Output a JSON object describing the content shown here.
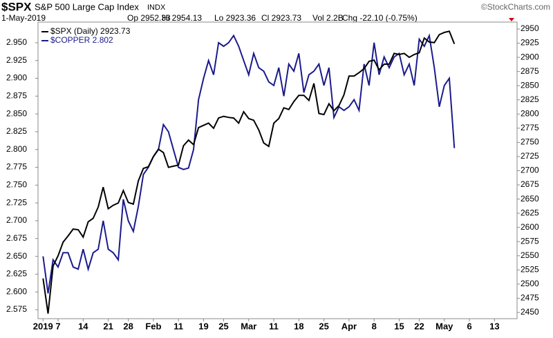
{
  "chart_data": {
    "type": "line",
    "symbol": "$SPX",
    "name": "S&P 500 Large Cap Index",
    "exchange": "INDX",
    "date": "1-May-2019",
    "quote": [
      "Op 2952.33",
      "Hi 2954.13",
      "Lo 2923.36",
      "Cl 2923.73",
      "Vol 2.2B",
      "Chg -22.10 (-0.75%)"
    ],
    "copyright": "©StockCharts.com",
    "xlim": [
      -1,
      94.5
    ],
    "xticks": [
      {
        "value": 0,
        "label": "2019"
      },
      {
        "value": 3,
        "label": "7"
      },
      {
        "value": 8,
        "label": "14"
      },
      {
        "value": 13,
        "label": "21"
      },
      {
        "value": 17,
        "label": "28"
      },
      {
        "value": 22,
        "label": "Feb"
      },
      {
        "value": 27,
        "label": "11"
      },
      {
        "value": 32,
        "label": "19"
      },
      {
        "value": 36,
        "label": "25"
      },
      {
        "value": 41,
        "label": "Mar"
      },
      {
        "value": 46,
        "label": "11"
      },
      {
        "value": 51,
        "label": "18"
      },
      {
        "value": 56,
        "label": "25"
      },
      {
        "value": 61,
        "label": "Apr"
      },
      {
        "value": 66,
        "label": "8"
      },
      {
        "value": 71,
        "label": "15"
      },
      {
        "value": 75,
        "label": "22"
      },
      {
        "value": 80,
        "label": "May"
      },
      {
        "value": 85,
        "label": "6"
      },
      {
        "value": 90,
        "label": "13"
      }
    ],
    "ylim": [
      2.5624,
      2.979
    ],
    "yticks": [
      {
        "value": 2.575,
        "label": "2.575"
      },
      {
        "value": 2.6,
        "label": "2.600"
      },
      {
        "value": 2.625,
        "label": "2.625"
      },
      {
        "value": 2.65,
        "label": "2.650"
      },
      {
        "value": 2.675,
        "label": "2.675"
      },
      {
        "value": 2.7,
        "label": "2.700"
      },
      {
        "value": 2.725,
        "label": "2.725"
      },
      {
        "value": 2.75,
        "label": "2.750"
      },
      {
        "value": 2.775,
        "label": "2.775"
      },
      {
        "value": 2.8,
        "label": "2.800"
      },
      {
        "value": 2.825,
        "label": "2.825"
      },
      {
        "value": 2.85,
        "label": "2.850"
      },
      {
        "value": 2.875,
        "label": "2.875"
      },
      {
        "value": 2.9,
        "label": "2.900"
      },
      {
        "value": 2.925,
        "label": "2.925"
      },
      {
        "value": 2.95,
        "label": "2.950"
      }
    ],
    "y2lim": [
      2439,
      2962.2
    ],
    "y2ticks": [
      2450,
      2475,
      2500,
      2525,
      2550,
      2575,
      2600,
      2625,
      2650,
      2675,
      2700,
      2725,
      2750,
      2775,
      2800,
      2825,
      2850,
      2875,
      2900,
      2925,
      2950
    ],
    "series": [
      {
        "name": "$SPX (Daily) 2923.73",
        "color": "#000000",
        "axis": "y2",
        "values": [
          2510,
          2448,
          2532,
          2550,
          2574,
          2585,
          2597,
          2596,
          2583,
          2610,
          2616,
          2636,
          2671,
          2633,
          2639,
          2643,
          2665,
          2644,
          2641,
          2682,
          2704,
          2707,
          2725,
          2738,
          2732,
          2706,
          2708,
          2710,
          2744,
          2754,
          2746,
          2776,
          2780,
          2784,
          2775,
          2793,
          2796,
          2794,
          2793,
          2784,
          2804,
          2792,
          2789,
          2772,
          2749,
          2743,
          2784,
          2792,
          2811,
          2808,
          2822,
          2833,
          2833,
          2824,
          2854,
          2801,
          2799,
          2818,
          2806,
          2815,
          2834,
          2867,
          2867,
          2873,
          2880,
          2893,
          2895,
          2878,
          2888,
          2888,
          2907,
          2905,
          2907,
          2900,
          2905,
          2908,
          2934,
          2927,
          2926,
          2940,
          2944,
          2946,
          2923.73
        ]
      },
      {
        "name": "$COPPER 2.802",
        "color": "#1a1a8c",
        "values": [
          2.65,
          2.598,
          2.645,
          2.635,
          2.655,
          2.655,
          2.635,
          2.632,
          2.66,
          2.632,
          2.655,
          2.66,
          2.7,
          2.66,
          2.655,
          2.645,
          2.73,
          2.7,
          2.685,
          2.72,
          2.765,
          2.775,
          2.79,
          2.8,
          2.835,
          2.825,
          2.8,
          2.775,
          2.772,
          2.774,
          2.8,
          2.87,
          2.9,
          2.925,
          2.905,
          2.95,
          2.945,
          2.95,
          2.96,
          2.945,
          2.925,
          2.905,
          2.935,
          2.915,
          2.91,
          2.895,
          2.89,
          2.915,
          2.875,
          2.92,
          2.91,
          2.935,
          2.88,
          2.905,
          2.91,
          2.92,
          2.89,
          2.915,
          2.845,
          2.86,
          2.855,
          2.86,
          2.87,
          2.855,
          2.92,
          2.89,
          2.95,
          2.905,
          2.93,
          2.915,
          2.93,
          2.935,
          2.905,
          2.92,
          2.89,
          2.955,
          2.945,
          2.96,
          2.915,
          2.86,
          2.89,
          2.9,
          2.802
        ]
      }
    ]
  }
}
